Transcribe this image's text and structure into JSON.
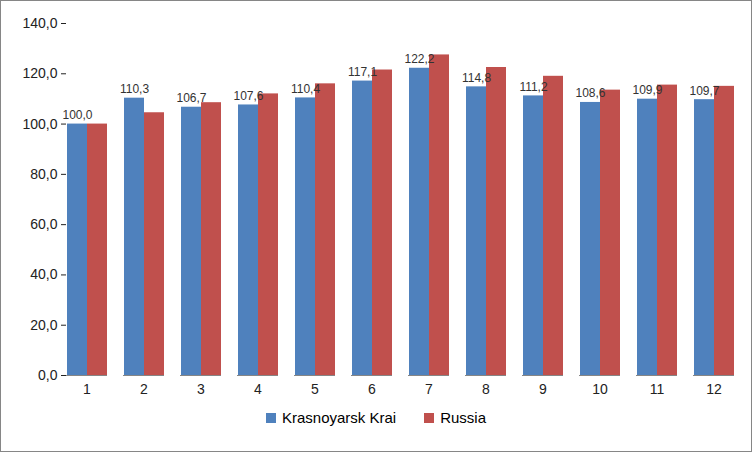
{
  "chart_data": {
    "type": "bar",
    "categories": [
      "1",
      "2",
      "3",
      "4",
      "5",
      "6",
      "7",
      "8",
      "9",
      "10",
      "11",
      "12"
    ],
    "series": [
      {
        "name": "Krasnoyarsk Krai",
        "color": "#4f81bd",
        "values": [
          100.0,
          110.3,
          106.7,
          107.6,
          110.4,
          117.1,
          122.2,
          114.8,
          111.2,
          108.6,
          109.9,
          109.7
        ],
        "value_labels": [
          "100,0",
          "110,3",
          "106,7",
          "107,6",
          "110,4",
          "117,1",
          "122,2",
          "114,8",
          "111,2",
          "108,6",
          "109,9",
          "109,7"
        ]
      },
      {
        "name": "Russia",
        "color": "#c0504d",
        "values": [
          100.0,
          104.5,
          108.5,
          112.0,
          116.0,
          121.5,
          127.5,
          122.5,
          119.0,
          113.5,
          115.5,
          115.0
        ]
      }
    ],
    "ylim": [
      0,
      140
    ],
    "yticks": [
      {
        "value": 0,
        "label": "0,0"
      },
      {
        "value": 20,
        "label": "20,0"
      },
      {
        "value": 40,
        "label": "40,0"
      },
      {
        "value": 60,
        "label": "60,0"
      },
      {
        "value": 80,
        "label": "80,0"
      },
      {
        "value": 100,
        "label": "100,0"
      },
      {
        "value": 120,
        "label": "120,0"
      },
      {
        "value": 140,
        "label": "140,0"
      }
    ],
    "grid": false,
    "data_labels": true,
    "legend": "bottom"
  }
}
